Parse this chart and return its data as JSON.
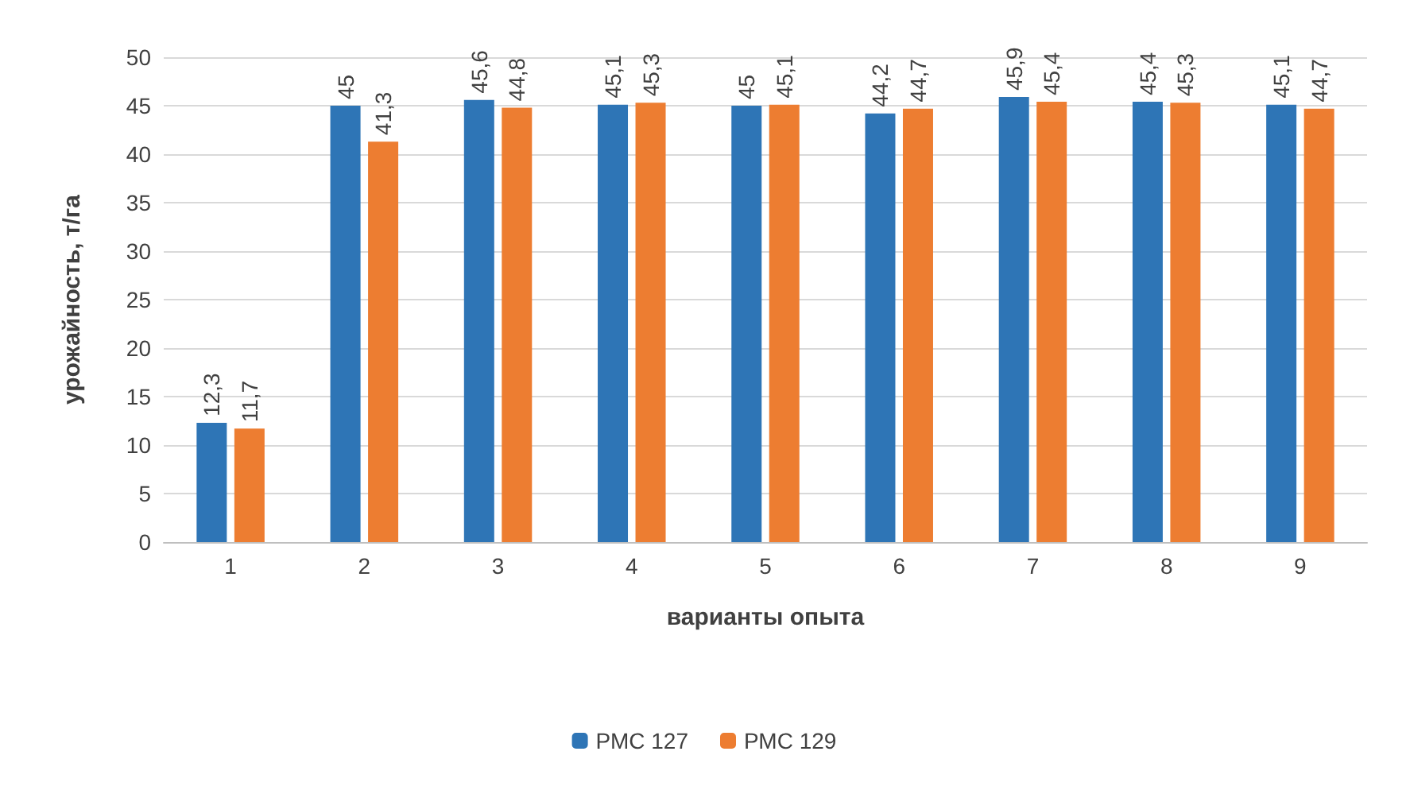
{
  "chart_data": {
    "type": "bar",
    "xlabel": "варианты опыта",
    "ylabel": "урожайность, т/га",
    "categories": [
      "1",
      "2",
      "3",
      "4",
      "5",
      "6",
      "7",
      "8",
      "9"
    ],
    "series": [
      {
        "name": "РМС 127",
        "color": "#2e75b6",
        "values": [
          12.3,
          45,
          45.6,
          45.1,
          45,
          44.2,
          45.9,
          45.4,
          45.1
        ],
        "value_labels": [
          "12,3",
          "45",
          "45,6",
          "45,1",
          "45",
          "44,2",
          "45,9",
          "45,4",
          "45,1"
        ]
      },
      {
        "name": "РМС 129",
        "color": "#ed7d31",
        "values": [
          11.7,
          41.3,
          44.8,
          45.3,
          45.1,
          44.7,
          45.4,
          45.3,
          44.7
        ],
        "value_labels": [
          "11,7",
          "41,3",
          "44,8",
          "45,3",
          "45,1",
          "44,7",
          "45,4",
          "45,3",
          "44,7"
        ]
      }
    ],
    "ylim": [
      0,
      50
    ],
    "yticks": [
      0,
      5,
      10,
      15,
      20,
      25,
      30,
      35,
      40,
      45,
      50
    ],
    "grid": "y",
    "legend": "bottom"
  }
}
